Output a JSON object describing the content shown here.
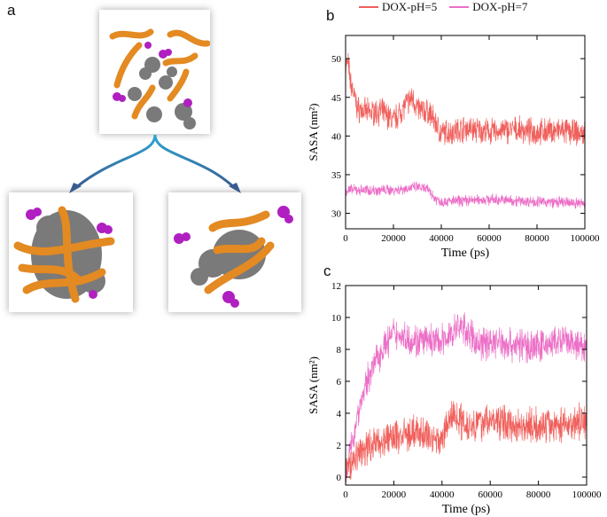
{
  "panels": {
    "a": "a",
    "b": "b",
    "c": "c"
  },
  "legend": [
    {
      "label": "DOX-pH=5",
      "color": "#f0605c"
    },
    {
      "label": "DOX-pH=7",
      "color": "#ec6fc7"
    }
  ],
  "colors": {
    "protein": "#e38a22",
    "drug": "#b01fc0",
    "polymer": "#7a7a7a",
    "arrow": "#2b5e9a"
  },
  "chart_data": [
    {
      "id": "b",
      "type": "line",
      "xlabel": "Time (ps)",
      "ylabel": "SASA (nm²)",
      "xlim": [
        0,
        100000
      ],
      "ylim": [
        28,
        53
      ],
      "xticks": [
        0,
        20000,
        40000,
        60000,
        80000,
        100000
      ],
      "yticks": [
        30,
        35,
        40,
        45,
        50
      ],
      "series": [
        {
          "name": "DOX-pH=5",
          "color": "#f0605c",
          "x": [
            0,
            1000,
            2000,
            5000,
            10000,
            15000,
            20000,
            25000,
            28000,
            30000,
            35000,
            37000,
            40000,
            50000,
            60000,
            70000,
            80000,
            90000,
            100000
          ],
          "y": [
            49,
            49.5,
            47,
            43.5,
            43,
            43.2,
            42,
            44,
            45,
            43.5,
            43,
            42,
            40.3,
            41,
            40.5,
            40.8,
            40.5,
            40.7,
            40.2
          ],
          "noise": 1.3
        },
        {
          "name": "DOX-pH=7",
          "color": "#ec6fc7",
          "x": [
            0,
            10000,
            20000,
            30000,
            35000,
            37000,
            40000,
            60000,
            80000,
            100000
          ],
          "y": [
            33,
            33,
            33,
            33.4,
            33,
            32,
            31.5,
            31.8,
            31.5,
            31.3
          ],
          "noise": 0.55
        }
      ]
    },
    {
      "id": "c",
      "type": "line",
      "xlabel": "Time (ps)",
      "ylabel": "SASA (nm²)",
      "xlim": [
        0,
        100000
      ],
      "ylim": [
        -0.5,
        12
      ],
      "xticks": [
        0,
        20000,
        40000,
        60000,
        80000,
        100000
      ],
      "yticks": [
        0,
        2,
        4,
        6,
        8,
        10,
        12
      ],
      "series": [
        {
          "name": "DOX-pH=7",
          "color": "#ec6fc7",
          "x": [
            0,
            2000,
            5000,
            10000,
            15000,
            20000,
            30000,
            40000,
            48000,
            55000,
            60000,
            70000,
            80000,
            90000,
            100000
          ],
          "y": [
            0.5,
            1.5,
            4,
            6.5,
            8,
            9,
            8.5,
            8.5,
            9.5,
            8.3,
            8.5,
            8.3,
            8.2,
            8.5,
            8
          ],
          "noise": 0.8
        },
        {
          "name": "DOX-pH=5",
          "color": "#f0605c",
          "x": [
            0,
            2000,
            5000,
            10000,
            20000,
            30000,
            40000,
            44000,
            50000,
            60000,
            70000,
            80000,
            90000,
            100000
          ],
          "y": [
            0.3,
            0.8,
            1.5,
            2,
            2.5,
            2.8,
            2.3,
            4,
            3.3,
            3.5,
            3.3,
            3.2,
            3.3,
            3.5
          ],
          "noise": 0.85
        }
      ]
    }
  ]
}
